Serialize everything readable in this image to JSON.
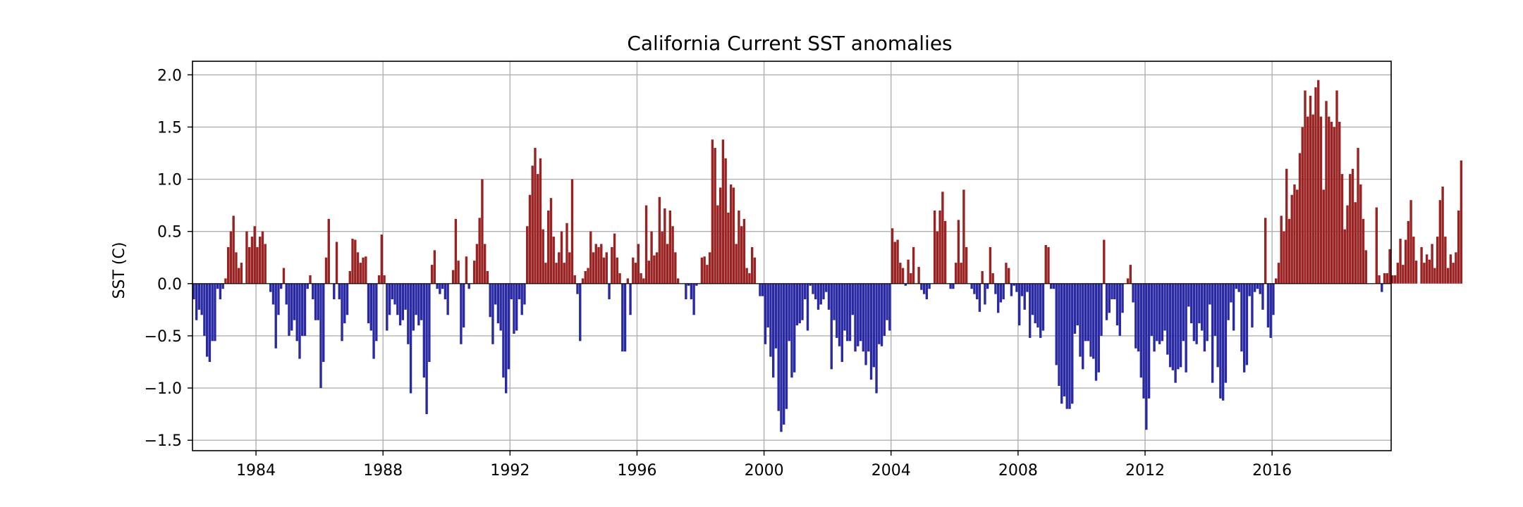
{
  "chart_data": {
    "type": "bar",
    "title": "California Current SST anomalies",
    "xlabel": "",
    "ylabel": "SST (C)",
    "xlim": [
      1982.0,
      2019.75
    ],
    "ylim": [
      -1.6,
      2.13
    ],
    "xticks": [
      1984,
      1988,
      1992,
      1996,
      2000,
      2004,
      2008,
      2012,
      2016
    ],
    "yticks": [
      -1.5,
      -1.0,
      -0.5,
      0.0,
      0.5,
      1.0,
      1.5,
      2.0
    ],
    "ytick_labels": [
      "−1.5",
      "−1.0",
      "−0.5",
      "0.0",
      "0.5",
      "1.0",
      "1.5",
      "2.0"
    ],
    "grid": true,
    "x_start": 1982.0,
    "x_step_years": 0.08333,
    "positive_color": "#992222",
    "negative_color": "#2929a3",
    "values": [
      -0.15,
      -0.35,
      -0.25,
      -0.3,
      -0.5,
      -0.7,
      -0.75,
      -0.55,
      -0.55,
      -0.05,
      -0.15,
      -0.05,
      0.05,
      0.35,
      0.5,
      0.65,
      0.3,
      0.15,
      0.2,
      0.0,
      0.5,
      0.35,
      0.45,
      0.55,
      0.35,
      0.45,
      0.5,
      0.38,
      0.0,
      -0.08,
      -0.2,
      -0.62,
      -0.3,
      -0.05,
      0.15,
      -0.2,
      -0.5,
      -0.45,
      -0.35,
      -0.55,
      -0.72,
      -0.5,
      -0.5,
      -0.05,
      0.08,
      -0.15,
      -0.35,
      -0.35,
      -1.0,
      -0.75,
      0.25,
      0.62,
      0.0,
      -0.15,
      0.4,
      -0.15,
      -0.55,
      -0.38,
      -0.3,
      0.12,
      0.43,
      0.42,
      0.3,
      0.2,
      0.25,
      0.26,
      -0.38,
      -0.45,
      -0.72,
      -0.55,
      0.08,
      0.47,
      0.08,
      -0.45,
      -0.3,
      -0.15,
      -0.2,
      -0.3,
      -0.4,
      -0.35,
      -0.25,
      -0.58,
      -1.05,
      -0.45,
      -0.3,
      -0.4,
      -0.35,
      -0.9,
      -1.25,
      -0.75,
      0.18,
      0.32,
      -0.05,
      -0.1,
      -0.05,
      -0.15,
      -0.3,
      0.0,
      0.13,
      0.62,
      0.22,
      -0.58,
      -0.42,
      0.26,
      -0.05,
      0.0,
      0.22,
      0.38,
      0.63,
      1.0,
      0.38,
      0.12,
      -0.32,
      -0.58,
      -0.2,
      -0.38,
      -0.45,
      -0.9,
      -1.05,
      -0.82,
      -0.15,
      -0.48,
      -0.45,
      -0.15,
      -0.3,
      -0.2,
      0.55,
      0.85,
      1.13,
      1.3,
      1.05,
      1.2,
      0.52,
      0.2,
      0.7,
      0.82,
      0.45,
      0.2,
      0.3,
      0.5,
      0.2,
      0.58,
      0.3,
      1.0,
      0.08,
      -0.1,
      -0.55,
      0.05,
      0.12,
      0.15,
      0.5,
      0.3,
      0.38,
      0.35,
      0.38,
      0.25,
      0.3,
      -0.15,
      0.35,
      0.48,
      0.25,
      0.1,
      -0.65,
      -0.65,
      0.05,
      -0.3,
      0.25,
      0.2,
      0.38,
      0.1,
      0.05,
      0.75,
      0.22,
      0.5,
      0.27,
      0.3,
      0.83,
      0.5,
      0.72,
      0.38,
      0.7,
      0.55,
      0.3,
      0.05,
      0.0,
      0.0,
      -0.15,
      -0.02,
      -0.15,
      -0.3,
      -0.02,
      0.0,
      0.25,
      0.26,
      0.18,
      0.3,
      1.38,
      1.3,
      0.75,
      0.92,
      1.38,
      1.2,
      0.68,
      0.95,
      0.92,
      0.38,
      0.7,
      0.55,
      0.62,
      0.15,
      0.1,
      0.35,
      0.25,
      0.0,
      -0.12,
      -0.12,
      -0.58,
      -0.42,
      -0.7,
      -0.9,
      -0.62,
      -1.22,
      -1.42,
      -1.35,
      -1.2,
      -0.55,
      -0.9,
      -0.85,
      -0.4,
      -0.38,
      -0.35,
      -0.15,
      -0.45,
      -0.02,
      -0.1,
      -0.15,
      -0.25,
      -0.2,
      -0.15,
      -0.08,
      -0.25,
      -0.82,
      -0.35,
      -0.52,
      -0.6,
      -0.75,
      -0.45,
      -0.55,
      -0.55,
      -0.3,
      -0.65,
      -0.6,
      -0.55,
      -0.65,
      -0.78,
      -0.65,
      -0.92,
      -0.8,
      -1.05,
      -0.58,
      -0.6,
      -0.5,
      -0.35,
      -0.45,
      0.53,
      0.4,
      0.42,
      0.2,
      0.15,
      -0.02,
      0.23,
      0.1,
      0.35,
      0.0,
      0.16,
      -0.06,
      -0.1,
      -0.15,
      -0.05,
      0.0,
      0.7,
      0.5,
      0.7,
      0.88,
      0.6,
      0.0,
      -0.05,
      -0.05,
      0.2,
      0.61,
      0.2,
      0.9,
      0.35,
      0.0,
      -0.05,
      -0.1,
      -0.15,
      -0.27,
      0.12,
      -0.2,
      -0.05,
      0.35,
      0.1,
      -0.1,
      -0.28,
      -0.18,
      -0.15,
      0.2,
      0.15,
      -0.12,
      -0.02,
      -0.08,
      -0.4,
      -0.12,
      -0.25,
      -0.08,
      -0.52,
      -0.3,
      -0.38,
      -0.42,
      -0.52,
      -0.45,
      0.37,
      0.35,
      -0.05,
      -0.05,
      -0.78,
      -0.98,
      -1.15,
      -1.08,
      -1.2,
      -1.2,
      -1.15,
      -0.48,
      -0.4,
      -0.7,
      -0.82,
      -0.55,
      -0.55,
      -0.7,
      -0.72,
      -0.93,
      -0.85,
      -0.5,
      0.42,
      -0.35,
      -0.28,
      -0.15,
      -0.15,
      -0.4,
      -0.5,
      -0.28,
      0.0,
      0.05,
      0.18,
      -0.18,
      -0.62,
      -0.65,
      -0.9,
      -1.1,
      -1.4,
      -1.1,
      -0.5,
      -0.65,
      -0.55,
      -0.58,
      -0.55,
      -0.45,
      -0.68,
      -0.8,
      -0.83,
      -0.95,
      -0.82,
      -0.8,
      -0.55,
      -0.85,
      -0.22,
      -0.38,
      -0.55,
      -0.58,
      -0.38,
      -0.45,
      -0.65,
      -0.55,
      -0.2,
      -0.95,
      -0.5,
      -0.8,
      -1.1,
      -1.12,
      -0.95,
      -0.35,
      -0.18,
      -0.45,
      -0.05,
      -0.08,
      -0.65,
      -0.85,
      -0.78,
      -0.12,
      -0.42,
      -0.08,
      -0.05,
      -0.1,
      -0.25,
      0.63,
      -0.42,
      -0.52,
      -0.3,
      0.05,
      0.2,
      0.65,
      0.5,
      1.1,
      0.62,
      0.85,
      0.95,
      0.9,
      1.25,
      1.5,
      1.85,
      1.6,
      1.8,
      1.62,
      1.88,
      1.95,
      1.6,
      0.9,
      1.75,
      1.6,
      1.55,
      1.5,
      1.85,
      1.55,
      1.05,
      0.52,
      0.75,
      1.05,
      1.1,
      0.78,
      1.3,
      0.95,
      0.62,
      0.32,
      0.0,
      0.0,
      0.0,
      0.73,
      0.08,
      -0.08,
      0.1,
      0.1,
      0.33,
      0.08,
      0.08,
      0.2,
      0.43,
      0.18,
      0.42,
      0.6,
      0.8,
      0.45,
      0.22,
      0.0,
      0.35,
      0.2,
      0.28,
      0.23,
      0.38,
      0.15,
      0.45,
      0.8,
      0.93,
      0.45,
      0.15,
      0.28,
      0.2,
      0.3,
      0.7,
      1.18
    ]
  }
}
